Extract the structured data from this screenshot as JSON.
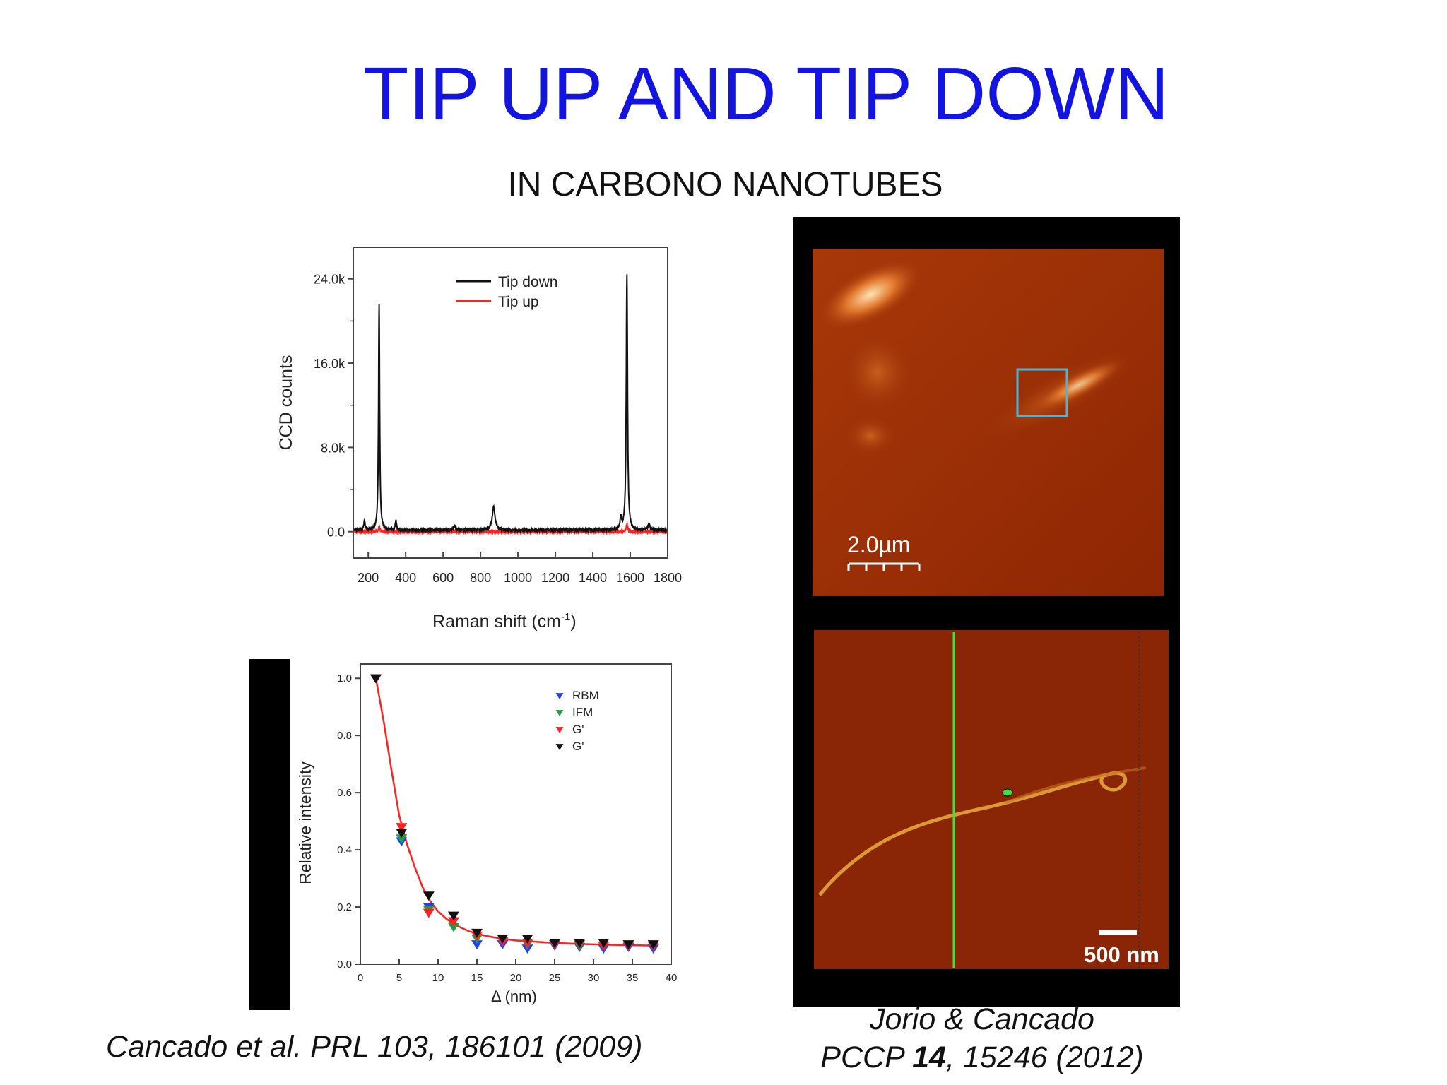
{
  "slide": {
    "title": "TIP UP AND TIP DOWN",
    "subtitle": "IN CARBONO NANOTUBES"
  },
  "chart_data": [
    {
      "type": "line",
      "xlabel": "Raman shift (cm",
      "xlabel_sup": "-1",
      "xlabel_close": ")",
      "ylabel": "CCD counts",
      "xlim": [
        120,
        1800
      ],
      "ylim": [
        -2500,
        27000
      ],
      "x_ticks": [
        200,
        400,
        600,
        800,
        1000,
        1200,
        1400,
        1600,
        1800
      ],
      "x_tick_labels": [
        "200",
        "400",
        "600",
        "800",
        "1000",
        "1200",
        "1400",
        "1600",
        "1800"
      ],
      "y_ticks": [
        0,
        8000,
        16000,
        24000
      ],
      "y_tick_labels": [
        "0.0",
        "8.0k",
        "16.0k",
        "24.0k"
      ],
      "legend_position": "top-center",
      "series": [
        {
          "name": "Tip down",
          "color": "#111111",
          "baseline": 150,
          "peaks": [
            {
              "x": 180,
              "y": 900,
              "w": 4
            },
            {
              "x": 258,
              "y": 21500,
              "w": 3.5
            },
            {
              "x": 348,
              "y": 900,
              "w": 4
            },
            {
              "x": 660,
              "y": 400,
              "w": 6
            },
            {
              "x": 870,
              "y": 2200,
              "w": 9
            },
            {
              "x": 1550,
              "y": 1100,
              "w": 5
            },
            {
              "x": 1582,
              "y": 24200,
              "w": 4
            },
            {
              "x": 1700,
              "y": 600,
              "w": 6
            }
          ]
        },
        {
          "name": "Tip up",
          "color": "#ff2020",
          "baseline": 0,
          "peaks": [
            {
              "x": 258,
              "y": 500,
              "w": 4
            },
            {
              "x": 1582,
              "y": 700,
              "w": 5
            }
          ]
        }
      ]
    },
    {
      "type": "scatter",
      "xlabel": "Δ (nm)",
      "ylabel": "Relative intensity",
      "xlim": [
        0,
        40
      ],
      "ylim": [
        0,
        1.05
      ],
      "x_ticks": [
        0,
        5,
        10,
        15,
        20,
        25,
        30,
        35,
        40
      ],
      "x_tick_labels": [
        "0",
        "5",
        "10",
        "15",
        "20",
        "25",
        "30",
        "35",
        "40"
      ],
      "y_ticks": [
        0,
        0.2,
        0.4,
        0.6,
        0.8,
        1.0
      ],
      "y_tick_labels": [
        "0.0",
        "0.2",
        "0.4",
        "0.6",
        "0.8",
        "1.0"
      ],
      "legend_position": "top-right",
      "fit_color": "#ff2020",
      "fit_curve": [
        [
          2,
          1.0
        ],
        [
          3,
          0.85
        ],
        [
          4,
          0.68
        ],
        [
          5,
          0.52
        ],
        [
          6,
          0.42
        ],
        [
          7,
          0.34
        ],
        [
          8,
          0.27
        ],
        [
          9,
          0.22
        ],
        [
          10,
          0.185
        ],
        [
          11,
          0.16
        ],
        [
          12,
          0.14
        ],
        [
          14,
          0.115
        ],
        [
          16,
          0.1
        ],
        [
          18,
          0.09
        ],
        [
          20,
          0.083
        ],
        [
          24,
          0.076
        ],
        [
          28,
          0.071
        ],
        [
          32,
          0.068
        ],
        [
          36,
          0.066
        ],
        [
          38,
          0.065
        ]
      ],
      "series": [
        {
          "name": "RBM",
          "color": "#2040ff",
          "x": [
            2,
            5.3,
            8.8,
            12,
            15,
            18.3,
            21.5,
            25,
            28.2,
            31.3,
            34.5,
            37.7
          ],
          "y": [
            1.0,
            0.43,
            0.2,
            0.15,
            0.07,
            0.07,
            0.055,
            0.065,
            0.06,
            0.055,
            0.06,
            0.055
          ]
        },
        {
          "name": "IFM",
          "color": "#20a040",
          "x": [
            2,
            5.3,
            8.8,
            12,
            15,
            18.3,
            21.5,
            25,
            28.2,
            31.3,
            34.5,
            37.7
          ],
          "y": [
            1.0,
            0.44,
            0.19,
            0.13,
            0.09,
            0.08,
            0.07,
            0.07,
            0.065,
            0.065,
            0.065,
            0.065
          ]
        },
        {
          "name": "G'",
          "color": "#ff2020",
          "x": [
            2,
            5.3,
            8.8,
            12,
            15,
            18.3,
            21.5,
            25,
            28.2,
            31.3,
            34.5,
            37.7
          ],
          "y": [
            1.0,
            0.48,
            0.18,
            0.15,
            0.1,
            0.08,
            0.075,
            0.07,
            0.07,
            0.065,
            0.065,
            0.065
          ]
        },
        {
          "name": "G'",
          "color": "#111111",
          "x": [
            2,
            5.3,
            8.8,
            12,
            15,
            18.3,
            21.5,
            25,
            28.2,
            31.3,
            34.5,
            37.7
          ],
          "y": [
            1.0,
            0.46,
            0.24,
            0.17,
            0.11,
            0.09,
            0.09,
            0.075,
            0.075,
            0.075,
            0.07,
            0.07
          ]
        }
      ]
    }
  ],
  "images": {
    "top_scale_label": "2.0µm",
    "bottom_scale_label": "500 nm"
  },
  "citations": {
    "left": "Cancado et al. PRL 103, 186101  (2009)",
    "right_line1": "Jorio & Cancado",
    "right_journal": "PCCP ",
    "right_volume": "14",
    "right_rest": ", 15246 (2012)"
  }
}
